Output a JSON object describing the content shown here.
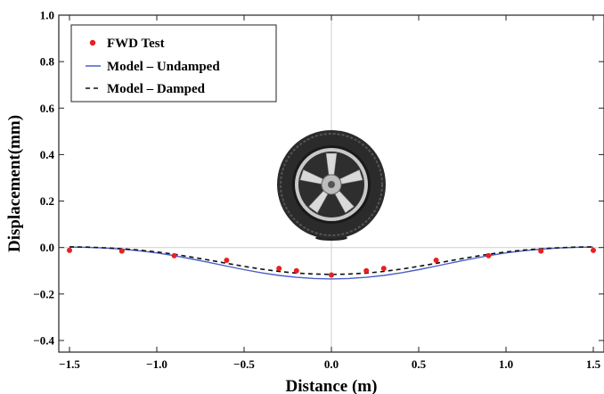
{
  "chart_data": {
    "type": "line",
    "title": "",
    "xlabel": "Distance (m)",
    "ylabel": "Displacement(mm)",
    "xlim": [
      -1.5,
      1.5
    ],
    "ylim": [
      -0.45,
      1.0
    ],
    "xticks": [
      -1.5,
      -1.0,
      -0.5,
      0.0,
      0.5,
      1.0,
      1.5
    ],
    "xtick_labels": [
      "−1.5",
      "−1.0",
      "−0.5",
      "0.0",
      "0.5",
      "1.0",
      "1.5"
    ],
    "yticks": [
      1.0,
      0.8,
      0.6,
      0.4,
      0.2,
      0.0,
      -0.2,
      -0.4
    ],
    "ytick_labels": [
      "1.0",
      "0.8",
      "0.6",
      "0.4",
      "0.2",
      "0.0",
      "−0.2",
      "−0.4"
    ],
    "grid": false,
    "legend_position": "top-left",
    "series": [
      {
        "name": "FWD Test",
        "kind": "scatter",
        "color": "#e8201f",
        "x": [
          -1.5,
          -1.2,
          -0.9,
          -0.6,
          -0.3,
          -0.2,
          0.0,
          0.2,
          0.3,
          0.6,
          0.9,
          1.2,
          1.5
        ],
        "y": [
          -0.012,
          -0.015,
          -0.035,
          -0.055,
          -0.09,
          -0.1,
          -0.118,
          -0.1,
          -0.09,
          -0.055,
          -0.035,
          -0.015,
          -0.012
        ]
      },
      {
        "name": "Model – Undamped",
        "kind": "line",
        "style": "solid",
        "color": "#4a5fc8",
        "x": [
          -1.5,
          -1.4,
          -1.3,
          -1.2,
          -1.1,
          -1.0,
          -0.9,
          -0.8,
          -0.7,
          -0.6,
          -0.5,
          -0.4,
          -0.3,
          -0.2,
          -0.1,
          0.0,
          0.1,
          0.2,
          0.3,
          0.4,
          0.5,
          0.6,
          0.7,
          0.8,
          0.9,
          1.0,
          1.1,
          1.2,
          1.3,
          1.4,
          1.5
        ],
        "y": [
          0.002,
          0.001,
          -0.002,
          -0.007,
          -0.014,
          -0.023,
          -0.035,
          -0.049,
          -0.064,
          -0.08,
          -0.095,
          -0.109,
          -0.12,
          -0.128,
          -0.133,
          -0.135,
          -0.133,
          -0.128,
          -0.12,
          -0.109,
          -0.095,
          -0.08,
          -0.064,
          -0.049,
          -0.035,
          -0.023,
          -0.014,
          -0.007,
          -0.002,
          0.001,
          0.002
        ]
      },
      {
        "name": "Model – Damped",
        "kind": "line",
        "style": "dashed",
        "color": "#111111",
        "x": [
          -1.5,
          -1.4,
          -1.3,
          -1.2,
          -1.1,
          -1.0,
          -0.9,
          -0.8,
          -0.7,
          -0.6,
          -0.5,
          -0.4,
          -0.3,
          -0.2,
          -0.1,
          0.0,
          0.1,
          0.2,
          0.3,
          0.4,
          0.5,
          0.6,
          0.7,
          0.8,
          0.9,
          1.0,
          1.1,
          1.2,
          1.3,
          1.4,
          1.5
        ],
        "y": [
          0.003,
          0.002,
          -0.001,
          -0.005,
          -0.011,
          -0.019,
          -0.029,
          -0.041,
          -0.054,
          -0.068,
          -0.081,
          -0.093,
          -0.103,
          -0.11,
          -0.114,
          -0.116,
          -0.114,
          -0.11,
          -0.103,
          -0.093,
          -0.081,
          -0.068,
          -0.054,
          -0.041,
          -0.029,
          -0.019,
          -0.011,
          -0.005,
          -0.001,
          0.002,
          0.003
        ]
      }
    ]
  }
}
